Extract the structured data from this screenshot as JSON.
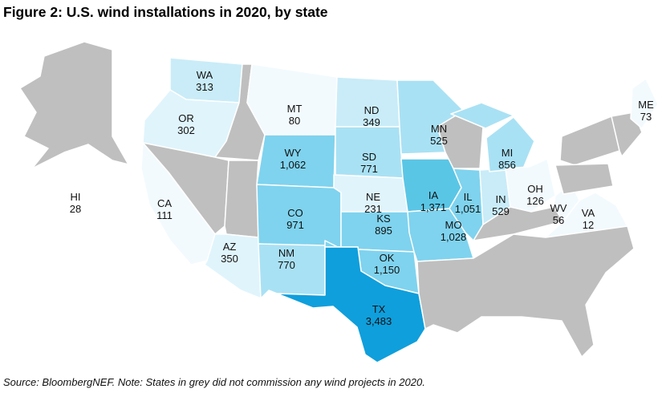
{
  "title": "Figure 2: U.S. wind installations in 2020, by state",
  "source": "Source: BloombergNEF. Note: States in grey did not commission any wind projects in 2020.",
  "colors": {
    "no_installations": "#bfbfbf",
    "scale": [
      "#f2fafe",
      "#e0f4fc",
      "#c9ecf8",
      "#a9e1f4",
      "#7fd3ee",
      "#5ac6e6",
      "#0f9fdc"
    ]
  },
  "states": [
    {
      "code": "WA",
      "value": "313"
    },
    {
      "code": "OR",
      "value": "302"
    },
    {
      "code": "MT",
      "value": "80"
    },
    {
      "code": "ND",
      "value": "349"
    },
    {
      "code": "MN",
      "value": "525"
    },
    {
      "code": "ME",
      "value": "73"
    },
    {
      "code": "SD",
      "value": "771"
    },
    {
      "code": "WY",
      "value": "1,062"
    },
    {
      "code": "MI",
      "value": "856"
    },
    {
      "code": "HI",
      "value": "28"
    },
    {
      "code": "CA",
      "value": "111"
    },
    {
      "code": "NE",
      "value": "231"
    },
    {
      "code": "IA",
      "value": "1,371"
    },
    {
      "code": "IL",
      "value": "1,051"
    },
    {
      "code": "IN",
      "value": "529"
    },
    {
      "code": "OH",
      "value": "126"
    },
    {
      "code": "WV",
      "value": "56"
    },
    {
      "code": "VA",
      "value": "12"
    },
    {
      "code": "CO",
      "value": "971"
    },
    {
      "code": "KS",
      "value": "895"
    },
    {
      "code": "MO",
      "value": "1,028"
    },
    {
      "code": "AZ",
      "value": "350"
    },
    {
      "code": "NM",
      "value": "770"
    },
    {
      "code": "OK",
      "value": "1,150"
    },
    {
      "code": "TX",
      "value": "3,483"
    }
  ]
}
